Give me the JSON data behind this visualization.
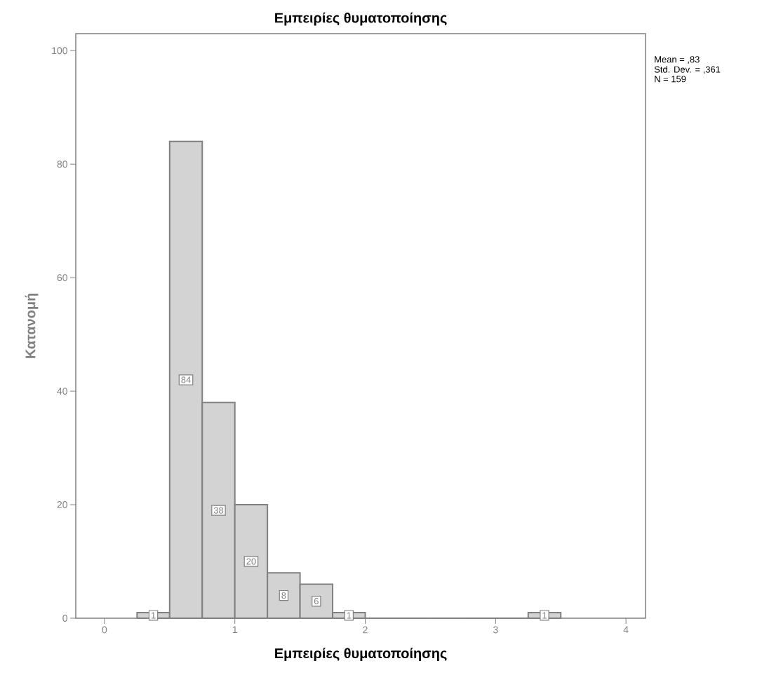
{
  "chart_data": {
    "type": "histogram",
    "title": "Εμπειρίες θυματοποίησης",
    "xlabel": "Εμπειρίες θυματοποίησης",
    "ylabel": "Κατανομή",
    "bins": [
      0.25,
      0.5,
      0.75,
      1.0,
      1.25,
      1.5,
      1.75,
      2.0,
      2.25,
      2.5,
      2.75,
      3.0,
      3.25,
      3.5
    ],
    "values": [
      1,
      84,
      38,
      20,
      8,
      6,
      1,
      0,
      0,
      0,
      0,
      0,
      1
    ],
    "value_labels": [
      "1",
      "84",
      "38",
      "20",
      "8",
      "6",
      "1",
      null,
      null,
      null,
      null,
      null,
      "1"
    ],
    "color": "#d3d3d3",
    "xlim": [
      -0.22,
      4.15
    ],
    "ylim": [
      0,
      103
    ],
    "xticks": [
      0,
      1,
      2,
      3,
      4
    ],
    "yticks": [
      0,
      20,
      40,
      60,
      80,
      100
    ],
    "grid": false,
    "annotations": [
      "Mean = ,83",
      "Std. Dev. = ,361",
      "N = 159"
    ]
  }
}
